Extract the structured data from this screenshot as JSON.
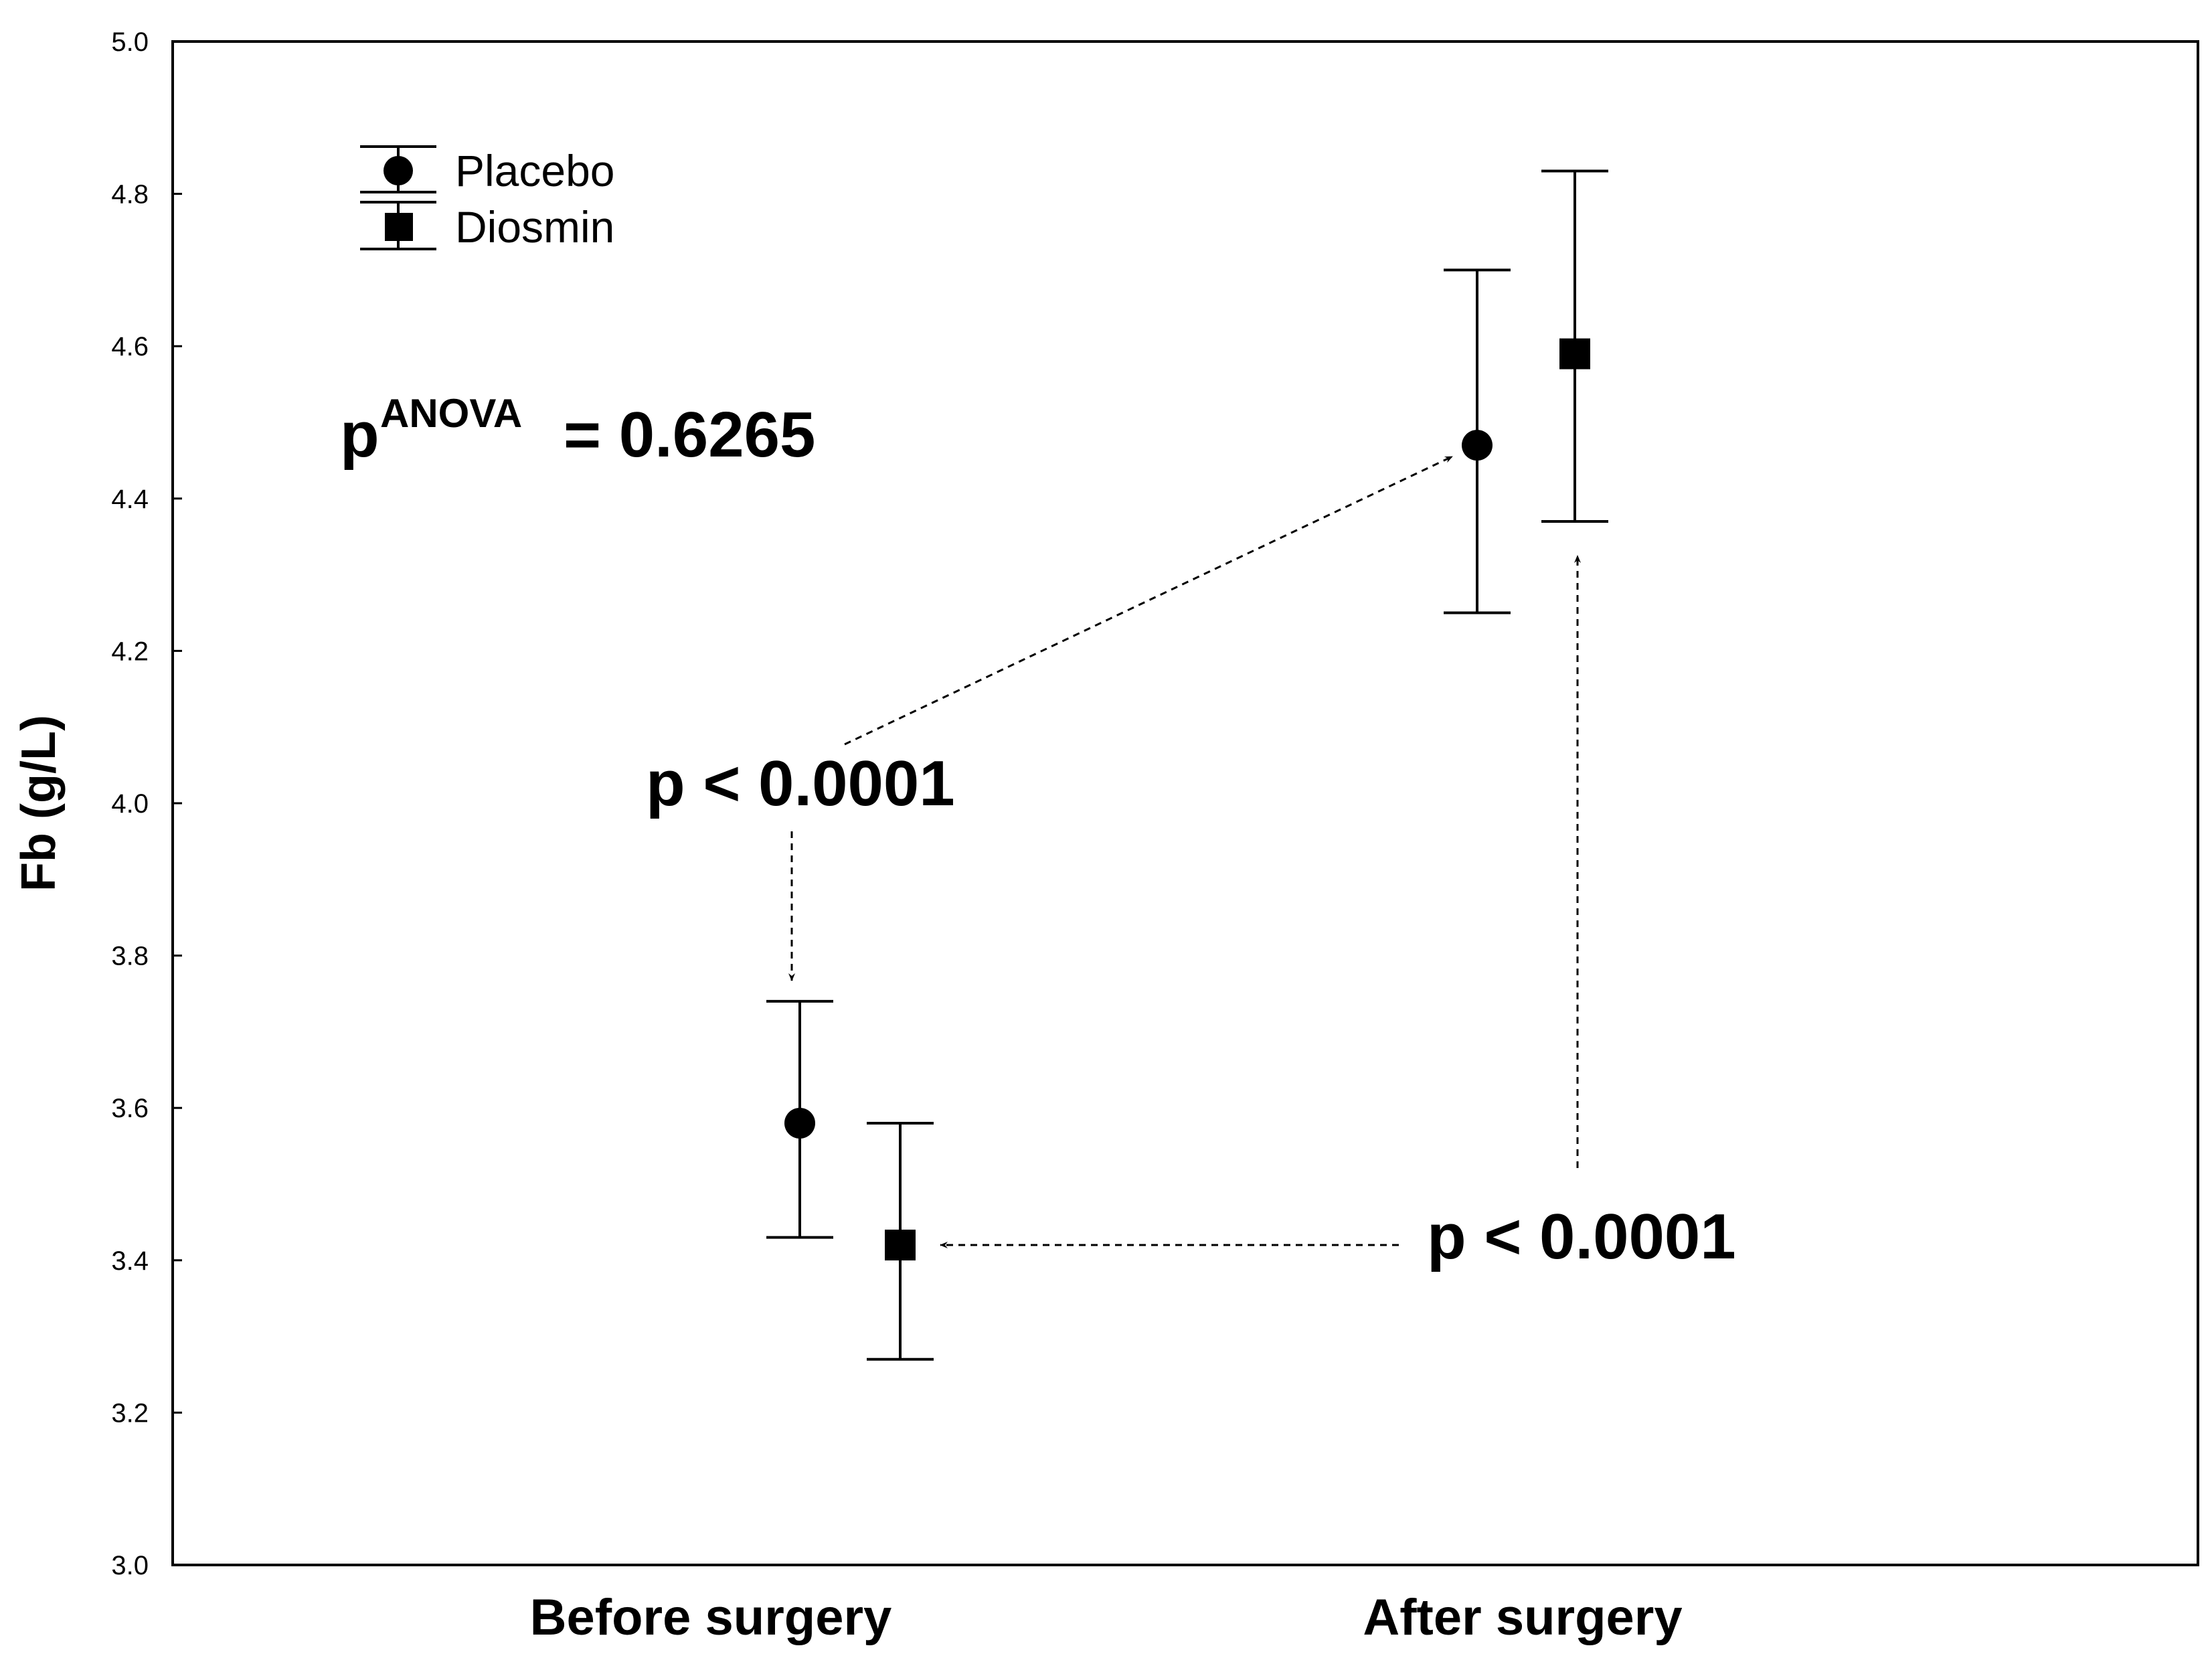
{
  "chart_data": {
    "type": "scatter",
    "title": "",
    "xlabel": "",
    "ylabel": "Fb (g/L)",
    "ylim": [
      3.0,
      5.0
    ],
    "yticks": [
      "3.0",
      "3.2",
      "3.4",
      "3.6",
      "3.8",
      "4.0",
      "4.2",
      "4.4",
      "4.6",
      "4.8",
      "5.0"
    ],
    "categories": [
      "Before surgery",
      "After surgery"
    ],
    "legend_position": "top-left",
    "series": [
      {
        "name": "Placebo",
        "marker": "circle",
        "values": [
          3.58,
          4.47
        ],
        "error_low": [
          3.43,
          4.25
        ],
        "error_high": [
          3.74,
          4.7
        ]
      },
      {
        "name": "Diosmin",
        "marker": "square",
        "values": [
          3.42,
          4.59
        ],
        "error_low": [
          3.27,
          4.37
        ],
        "error_high": [
          3.58,
          4.83
        ]
      }
    ],
    "annotations": {
      "anova_prefix": "p",
      "anova_superscript": "ANOVA",
      "anova_value": "= 0.6265",
      "placebo_pvalue": "p < 0.0001",
      "diosmin_pvalue": "p < 0.0001"
    }
  }
}
